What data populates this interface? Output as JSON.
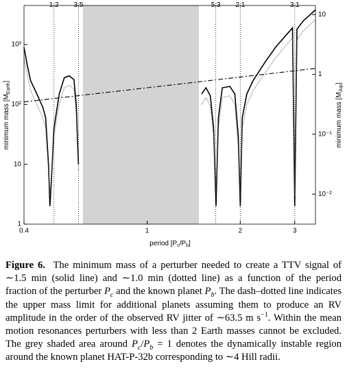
{
  "chart_data": {
    "type": "line",
    "xlabel": [
      "period [P",
      "c",
      "/P",
      "b",
      "]"
    ],
    "ylabel": [
      "minimum mass [M",
      "Earth",
      "]"
    ],
    "y2label": [
      "minimum mass [M",
      "Jup",
      "]"
    ],
    "xscale": "log",
    "yscale": "log",
    "xlim": [
      0.4,
      3.5
    ],
    "ylim": [
      1,
      4500
    ],
    "y2lim": [
      0.00315,
      14.2
    ],
    "xticks": [
      0.4,
      1,
      2,
      3
    ],
    "yticks": [
      1,
      10,
      {
        "value": 100,
        "label": "10²"
      },
      {
        "value": 1000,
        "label": "10³"
      }
    ],
    "y2ticks": [
      {
        "value": 0.01,
        "label": "10⁻²"
      },
      {
        "value": 0.1,
        "label": "10⁻¹"
      },
      1,
      10
    ],
    "shaded": [
      0.62,
      1.47
    ],
    "shade_color": "#d3d3d3",
    "resonances": [
      {
        "label": "1:2",
        "x": 0.5
      },
      {
        "label": "3:5",
        "x": 0.6
      },
      {
        "label": "5:3",
        "x": 1.667
      },
      {
        "label": "2:1",
        "x": 2
      },
      {
        "label": "3:1",
        "x": 3
      }
    ],
    "series": [
      {
        "style": "solid",
        "color": "#000000",
        "x": [
          0.4,
          0.41,
          0.42,
          0.44,
          0.46,
          0.47,
          0.48,
          0.485,
          0.49,
          0.5,
          0.52,
          0.54,
          0.56,
          0.58,
          0.59,
          0.595,
          0.6,
          1.0,
          1.5,
          1.55,
          1.6,
          1.64,
          1.67,
          1.7,
          1.75,
          1.85,
          1.92,
          1.97,
          2.0,
          2.03,
          2.1,
          2.2,
          2.4,
          2.6,
          2.8,
          2.95,
          3.0,
          3.05,
          3.2,
          3.5
        ],
        "values": [
          900,
          450,
          250,
          150,
          90,
          60,
          10,
          2,
          5,
          40,
          150,
          280,
          300,
          260,
          100,
          30,
          10,
          null,
          150,
          190,
          140,
          40,
          2,
          60,
          190,
          200,
          150,
          30,
          2,
          60,
          150,
          250,
          500,
          900,
          1400,
          1900,
          2,
          1800,
          2500,
          3800
        ]
      },
      {
        "style": "dotted",
        "color": "#555555",
        "x": [
          0.4,
          0.41,
          0.42,
          0.44,
          0.46,
          0.47,
          0.48,
          0.485,
          0.49,
          0.5,
          0.52,
          0.54,
          0.56,
          0.58,
          0.59,
          0.595,
          0.6,
          1.0,
          1.5,
          1.55,
          1.6,
          1.64,
          1.67,
          1.7,
          1.75,
          1.85,
          1.92,
          1.97,
          2.0,
          2.03,
          2.1,
          2.2,
          2.4,
          2.6,
          2.8,
          2.95,
          3.0,
          3.05,
          3.2,
          3.5
        ],
        "values": [
          600,
          300,
          170,
          100,
          60,
          40,
          8,
          3,
          6,
          30,
          100,
          190,
          210,
          180,
          70,
          20,
          8,
          null,
          100,
          130,
          95,
          30,
          3,
          40,
          130,
          140,
          100,
          20,
          3,
          40,
          100,
          170,
          330,
          600,
          950,
          1300,
          3,
          1200,
          1700,
          2600
        ]
      },
      {
        "style": "dashdot",
        "color": "#000000",
        "x": [
          0.4,
          3.5
        ],
        "values": [
          110,
          400
        ]
      }
    ]
  },
  "caption": {
    "label": "Figure 6.",
    "parts": [
      "The minimum mass of a perturber needed to create a TTV signal of ∼1.5 min (solid line) and ∼1.0 min (dotted line) as a function of the period fraction of the perturber ",
      "P",
      "c",
      " and the known planet ",
      "P",
      "b",
      ". The dash–dotted line indicates the upper mass limit for additional planets assuming them to produce an RV amplitude in the order of the observed RV jitter of ∼63.5 m s",
      "−1",
      ". Within the mean motion resonances perturbers with less than 2 Earth masses cannot be excluded. The grey shaded area around ",
      "P",
      "c",
      "/",
      "P",
      "b",
      " = 1 denotes the dynamically instable region around the known planet HAT-P-32b corresponding to ∼4 Hill radii."
    ]
  }
}
